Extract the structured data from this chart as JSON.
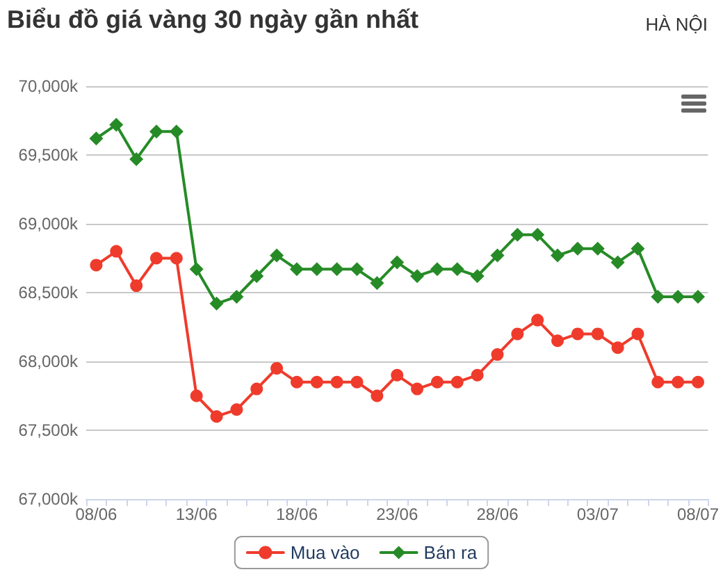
{
  "chart_data": {
    "type": "line",
    "title": "Biểu đồ giá vàng 30 ngày gần nhất",
    "subtitle": "HÀ NỘI",
    "categories": [
      "08/06",
      null,
      null,
      null,
      null,
      "13/06",
      null,
      null,
      null,
      null,
      "18/06",
      null,
      null,
      null,
      null,
      "23/06",
      null,
      null,
      null,
      null,
      "28/06",
      null,
      null,
      null,
      null,
      "03/07",
      null,
      null,
      null,
      null,
      "08/07"
    ],
    "series": [
      {
        "name": "Mua vào",
        "color": "#ef3b2c",
        "marker": "circle",
        "values": [
          68700,
          68800,
          68550,
          68750,
          68750,
          67750,
          67600,
          67650,
          67800,
          67950,
          67850,
          67850,
          67850,
          67850,
          67750,
          67900,
          67800,
          67850,
          67850,
          67900,
          68050,
          68200,
          68300,
          68150,
          68200,
          68200,
          68100,
          68200,
          67850,
          67850,
          67850
        ]
      },
      {
        "name": "Bán ra",
        "color": "#268b26",
        "marker": "diamond",
        "values": [
          69620,
          69720,
          69470,
          69670,
          69670,
          68670,
          68420,
          68470,
          68620,
          68770,
          68670,
          68670,
          68670,
          68670,
          68570,
          68720,
          68620,
          68670,
          68670,
          68620,
          68770,
          68920,
          68920,
          68770,
          68820,
          68820,
          68720,
          68820,
          68470,
          68470,
          68470
        ]
      }
    ],
    "ylim": [
      67000,
      70000
    ],
    "yticks": [
      {
        "value": 67000,
        "label": "67,000k"
      },
      {
        "value": 67500,
        "label": "67,500k"
      },
      {
        "value": 68000,
        "label": "68,000k"
      },
      {
        "value": 68500,
        "label": "68,500k"
      },
      {
        "value": 69000,
        "label": "69,000k"
      },
      {
        "value": 69500,
        "label": "69,500k"
      },
      {
        "value": 70000,
        "label": "70,000k"
      }
    ],
    "grid": "y",
    "legend": "bottom",
    "line_style": "solid"
  }
}
